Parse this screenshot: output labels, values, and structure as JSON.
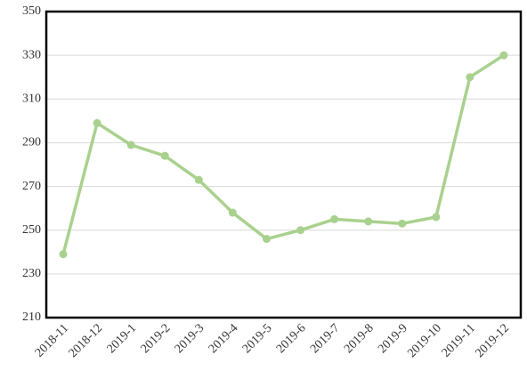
{
  "chart_data": {
    "type": "line",
    "categories": [
      "2018-11",
      "2018-12",
      "2019-1",
      "2019-2",
      "2019-3",
      "2019-4",
      "2019-5",
      "2019-6",
      "2019-7",
      "2019-8",
      "2019-9",
      "2019-10",
      "2019-11",
      "2019-12"
    ],
    "series": [
      {
        "color": "#a9d18e",
        "values": [
          239,
          299,
          289,
          284,
          273,
          258,
          246,
          250,
          255,
          254,
          253,
          256,
          320,
          330
        ]
      }
    ],
    "ylim": [
      210,
      350
    ],
    "yticks": [
      210,
      230,
      250,
      270,
      290,
      310,
      330,
      350
    ],
    "grid": true
  }
}
